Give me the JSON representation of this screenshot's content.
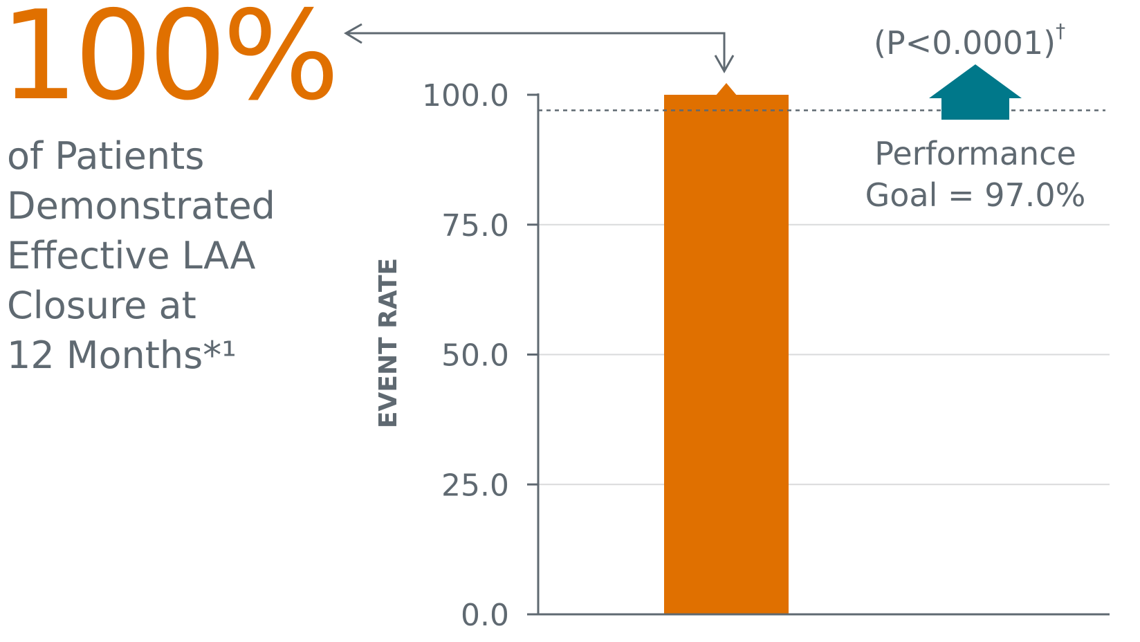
{
  "headline": {
    "stat": "100%",
    "lines": [
      "of Patients",
      "Demonstrated",
      "Effective LAA",
      "Closure at",
      "12 Months*¹"
    ]
  },
  "colors": {
    "bar": "#E07000",
    "goal_arrow": "#00788A",
    "text": "#5F6971",
    "grid": "#D9DADB",
    "axis": "#5F6971"
  },
  "chart_data": {
    "type": "bar",
    "categories": [
      ""
    ],
    "values": [
      100.0
    ],
    "ylabel": "EVENT RATE",
    "ylim": [
      0,
      100
    ],
    "yticks": [
      "0.0",
      "25.0",
      "50.0",
      "75.0",
      "100.0"
    ],
    "grid": true,
    "performance_goal": {
      "value": 97.0,
      "label_line1": "Performance",
      "label_line2": "Goal = 97.0%"
    },
    "p_value": {
      "text": "(P<0.0001)",
      "sup": "†"
    }
  }
}
